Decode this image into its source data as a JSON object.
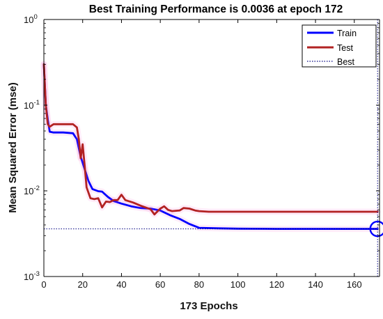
{
  "chart_data": {
    "type": "line",
    "title": "Best Training Performance is 0.0036 at epoch 172",
    "xlabel": "173 Epochs",
    "ylabel": "Mean Squared Error  (mse)",
    "xscale": "linear",
    "yscale": "log",
    "xlim": [
      0,
      173
    ],
    "ylim": [
      0.001,
      1
    ],
    "xticks": [
      0,
      20,
      40,
      60,
      80,
      100,
      120,
      140,
      160
    ],
    "xtick_labels": [
      "0",
      "20",
      "40",
      "60",
      "80",
      "100",
      "120",
      "140",
      "160"
    ],
    "ytick_labels": [
      {
        "base": "10",
        "exp": "0"
      },
      {
        "base": "10",
        "exp": "-1"
      },
      {
        "base": "10",
        "exp": "-2"
      },
      {
        "base": "10",
        "exp": "-3"
      }
    ],
    "grid": false,
    "legend_position": "top-right",
    "series": [
      {
        "name": "Train",
        "color": "#0000ff",
        "x": [
          0,
          1,
          2,
          3,
          5,
          10,
          15,
          17,
          19,
          21,
          23,
          25,
          28,
          30,
          33,
          36,
          40,
          45,
          50,
          55,
          60,
          65,
          70,
          75,
          80,
          90,
          100,
          120,
          140,
          160,
          172
        ],
        "y": [
          0.3,
          0.1,
          0.068,
          0.049,
          0.048,
          0.048,
          0.047,
          0.04,
          0.025,
          0.018,
          0.013,
          0.0105,
          0.0099,
          0.0098,
          0.0085,
          0.0076,
          0.0071,
          0.0066,
          0.0063,
          0.0062,
          0.0059,
          0.0052,
          0.0047,
          0.0041,
          0.0037,
          0.00365,
          0.00362,
          0.0036,
          0.0036,
          0.0036,
          0.0036
        ]
      },
      {
        "name": "Test",
        "color": "#b22222",
        "x": [
          0,
          1,
          2,
          3,
          5,
          10,
          15,
          17,
          18,
          19,
          20,
          21,
          22,
          24,
          26,
          28,
          30,
          32,
          34,
          36,
          38,
          40,
          42,
          46,
          50,
          55,
          57,
          58,
          60,
          62,
          64,
          66,
          70,
          72,
          75,
          78,
          80,
          85,
          90,
          100,
          120,
          140,
          160,
          172
        ],
        "y": [
          0.3,
          0.1,
          0.06,
          0.056,
          0.06,
          0.06,
          0.06,
          0.055,
          0.04,
          0.024,
          0.035,
          0.02,
          0.011,
          0.0082,
          0.008,
          0.0082,
          0.0064,
          0.0075,
          0.0074,
          0.0078,
          0.0078,
          0.009,
          0.0078,
          0.0073,
          0.0067,
          0.0061,
          0.0053,
          0.0056,
          0.0062,
          0.0066,
          0.006,
          0.0058,
          0.0059,
          0.0063,
          0.0062,
          0.0059,
          0.0058,
          0.0057,
          0.0057,
          0.0057,
          0.0057,
          0.0057,
          0.0057,
          0.0057
        ]
      }
    ],
    "best": {
      "name": "Best",
      "epoch": 172,
      "value": 0.0036,
      "color": "#000080"
    },
    "legend": [
      "Train",
      "Test",
      "Best"
    ]
  }
}
